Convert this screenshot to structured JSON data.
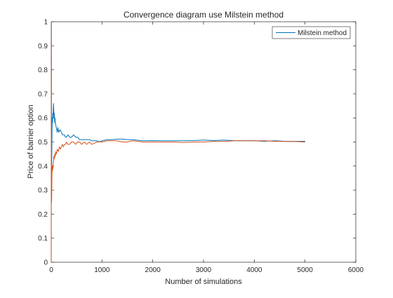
{
  "chart_data": {
    "type": "line",
    "title": "Convergence diagram use Milstein method",
    "xlabel": "Number of simulations",
    "ylabel": "Price of barrier option",
    "xlim": [
      0,
      6000
    ],
    "ylim": [
      0,
      1
    ],
    "x_ticks": [
      "0",
      "1000",
      "2000",
      "3000",
      "4000",
      "5000",
      "6000"
    ],
    "y_ticks": [
      "0",
      "0.1",
      "0.2",
      "0.3",
      "0.4",
      "0.5",
      "0.6",
      "0.7",
      "0.8",
      "0.9",
      "1"
    ],
    "grid": false,
    "legend_position": "top-right",
    "legend_entries": [
      "Milstein method"
    ],
    "series": [
      {
        "name": "Milstein method",
        "color": "#0072BD",
        "x": [
          1,
          4,
          8,
          12,
          16,
          20,
          25,
          30,
          35,
          40,
          45,
          50,
          55,
          60,
          65,
          70,
          75,
          80,
          90,
          100,
          110,
          120,
          130,
          140,
          150,
          165,
          180,
          200,
          220,
          240,
          260,
          280,
          300,
          330,
          360,
          400,
          440,
          480,
          520,
          560,
          600,
          650,
          700,
          750,
          800,
          850,
          900,
          950,
          1000,
          1100,
          1200,
          1300,
          1400,
          1500,
          1600,
          1800,
          2000,
          2200,
          2400,
          2600,
          2800,
          3000,
          3200,
          3400,
          3600,
          3800,
          4000,
          4200,
          4400,
          4600,
          4800,
          5000
        ],
        "y": [
          1.0,
          0.5,
          0.33,
          0.47,
          0.55,
          0.6,
          0.58,
          0.62,
          0.6,
          0.64,
          0.66,
          0.63,
          0.6,
          0.62,
          0.6,
          0.58,
          0.6,
          0.58,
          0.57,
          0.56,
          0.55,
          0.54,
          0.56,
          0.55,
          0.54,
          0.55,
          0.55,
          0.54,
          0.53,
          0.53,
          0.53,
          0.52,
          0.52,
          0.53,
          0.52,
          0.52,
          0.53,
          0.52,
          0.52,
          0.51,
          0.51,
          0.51,
          0.51,
          0.51,
          0.505,
          0.505,
          0.505,
          0.5,
          0.505,
          0.51,
          0.51,
          0.512,
          0.512,
          0.51,
          0.51,
          0.505,
          0.506,
          0.505,
          0.505,
          0.505,
          0.506,
          0.508,
          0.506,
          0.508,
          0.506,
          0.505,
          0.505,
          0.503,
          0.505,
          0.503,
          0.503,
          0.503
        ]
      },
      {
        "color": "#D95319",
        "x": [
          1,
          3,
          5,
          8,
          12,
          16,
          20,
          25,
          30,
          35,
          40,
          45,
          50,
          60,
          70,
          80,
          90,
          100,
          110,
          120,
          140,
          160,
          180,
          200,
          220,
          240,
          260,
          280,
          300,
          330,
          360,
          400,
          440,
          480,
          520,
          560,
          600,
          650,
          700,
          750,
          800,
          850,
          900,
          950,
          1000,
          1100,
          1200,
          1300,
          1400,
          1500,
          1600,
          1800,
          2000,
          2200,
          2400,
          2600,
          2800,
          3000,
          3200,
          3400,
          3600,
          3800,
          4000,
          4200,
          4400,
          4600,
          4800,
          5000
        ],
        "y": [
          0.0,
          1.0,
          0.6,
          0.25,
          0.33,
          0.38,
          0.4,
          0.38,
          0.4,
          0.39,
          0.41,
          0.42,
          0.44,
          0.43,
          0.45,
          0.44,
          0.46,
          0.45,
          0.46,
          0.47,
          0.46,
          0.48,
          0.47,
          0.48,
          0.49,
          0.48,
          0.49,
          0.49,
          0.5,
          0.49,
          0.49,
          0.5,
          0.5,
          0.49,
          0.5,
          0.5,
          0.49,
          0.5,
          0.49,
          0.5,
          0.49,
          0.495,
          0.5,
          0.5,
          0.5,
          0.505,
          0.505,
          0.505,
          0.5,
          0.5,
          0.505,
          0.5,
          0.5,
          0.5,
          0.5,
          0.498,
          0.5,
          0.5,
          0.502,
          0.502,
          0.505,
          0.505,
          0.505,
          0.505,
          0.503,
          0.502,
          0.502,
          0.5
        ]
      }
    ]
  }
}
